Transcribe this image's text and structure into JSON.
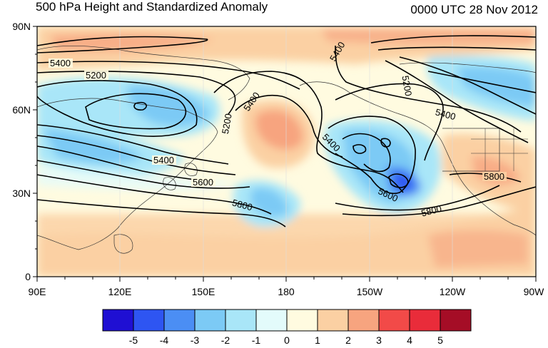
{
  "title": "500 hPa Height and Standardized Anomaly",
  "datetime": "0000 UTC 28 Nov 2012",
  "map": {
    "lat_ticks": [
      "90N",
      "60N",
      "30N",
      "0"
    ],
    "lon_ticks": [
      "90E",
      "120E",
      "150E",
      "180",
      "150W",
      "120W",
      "90W"
    ],
    "contour_labels": [
      "5400",
      "5200",
      "5400",
      "5200",
      "5400",
      "5600",
      "5800",
      "5400",
      "5200",
      "5400",
      "5600",
      "5800",
      "5400",
      "5800"
    ]
  },
  "colorbar": {
    "labels": [
      "-5",
      "-4",
      "-3",
      "-2",
      "-1",
      "0",
      "1",
      "2",
      "3",
      "4",
      "5"
    ],
    "colors": [
      "#1f0fd3",
      "#2e55f2",
      "#4b8ef4",
      "#7ccaf5",
      "#a9e6f8",
      "#e3fbfb",
      "#fffbe0",
      "#fbd0a3",
      "#f7a47f",
      "#f24a48",
      "#e92c3a",
      "#a50d26"
    ]
  }
}
